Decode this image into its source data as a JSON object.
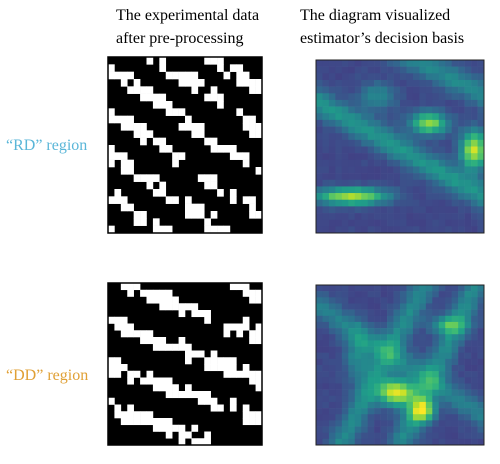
{
  "headers": [
    {
      "lines": [
        "The experimental data",
        "after pre-processing"
      ]
    },
    {
      "lines": [
        "The diagram visualized",
        "estimator’s decision basis"
      ]
    }
  ],
  "rows": [
    {
      "label": "“RD”  region"
    },
    {
      "label": "“DD” region"
    }
  ]
}
